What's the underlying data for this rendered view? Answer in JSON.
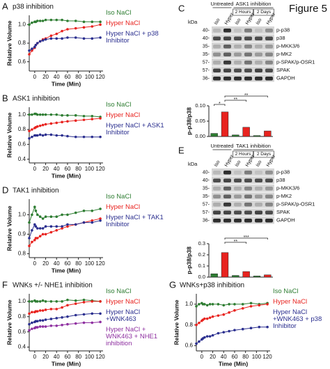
{
  "figure_label": "Figure 5",
  "chart_data": [
    {
      "type": "line",
      "label": "A",
      "title": "p38 inhibition",
      "ylabel": "Relative Volume",
      "xlabel": "Time (Min)",
      "x": [
        -10,
        -5,
        0,
        2,
        5,
        10,
        15,
        20,
        30,
        40,
        50,
        60,
        75,
        90,
        105,
        120
      ],
      "xlim": [
        -10,
        125
      ],
      "xticks": [
        0,
        20,
        40,
        60,
        80,
        100,
        120
      ],
      "ylim": [
        0.5,
        1.1
      ],
      "yticks": [
        0.6,
        0.8,
        {
          "value": 1,
          "label": "1.0"
        }
      ],
      "series": [
        {
          "name": "Iso NaCl",
          "color": "#2e7d32",
          "values": [
            1.0,
            1.02,
            1.03,
            1.03,
            1.04,
            1.04,
            1.04,
            1.05,
            1.05,
            1.05,
            1.05,
            1.04,
            1.04,
            1.03,
            1.03,
            1.03
          ]
        },
        {
          "name": "Hyper NaCl",
          "color": "#e8231f",
          "values": [
            0.68,
            0.72,
            0.75,
            0.78,
            0.8,
            0.82,
            0.84,
            0.85,
            0.88,
            0.9,
            0.93,
            0.95,
            0.96,
            0.97,
            0.98,
            1.0
          ]
        },
        {
          "name": "Hyper NaCl + p38 Inhibitor",
          "color": "#2b2f8f",
          "values": [
            0.72,
            0.74,
            0.76,
            0.78,
            0.8,
            0.82,
            0.83,
            0.84,
            0.85,
            0.85,
            0.85,
            0.86,
            0.86,
            0.85,
            0.85,
            0.86
          ]
        }
      ]
    },
    {
      "type": "line",
      "label": "B",
      "title": "ASK1 inhibition",
      "ylabel": "Relative Volume",
      "xlabel": "Time (Min)",
      "x": [
        -10,
        -5,
        0,
        2,
        5,
        10,
        15,
        20,
        30,
        40,
        50,
        60,
        75,
        90,
        105,
        120
      ],
      "xlim": [
        -10,
        125
      ],
      "xticks": [
        0,
        20,
        40,
        60,
        80,
        100,
        120
      ],
      "ylim": [
        0.35,
        1.1
      ],
      "yticks": [
        0.4,
        0.6,
        0.8,
        {
          "value": 1,
          "label": "1.0"
        }
      ],
      "series": [
        {
          "name": "Iso NaCl",
          "color": "#2e7d32",
          "values": [
            1.0,
            1.0,
            1.01,
            1.01,
            1.0,
            1.0,
            1.0,
            1.0,
            1.0,
            1.0,
            0.99,
            0.99,
            0.99,
            0.98,
            0.98,
            0.97
          ]
        },
        {
          "name": "Hyper NaCl",
          "color": "#e8231f",
          "values": [
            0.78,
            0.8,
            0.82,
            0.83,
            0.84,
            0.85,
            0.86,
            0.87,
            0.88,
            0.89,
            0.9,
            0.91,
            0.92,
            0.93,
            0.94,
            0.95
          ]
        },
        {
          "name": "Hyper NaCl + ASK1 Inhibitor",
          "color": "#2b2f8f",
          "values": [
            0.68,
            0.7,
            0.72,
            0.72,
            0.72,
            0.73,
            0.72,
            0.73,
            0.73,
            0.72,
            0.72,
            0.71,
            0.7,
            0.7,
            0.7,
            0.7
          ]
        }
      ]
    },
    {
      "type": "bar",
      "ylabel": "p-p38/p38",
      "categories": [
        null,
        null,
        null,
        null,
        null,
        null
      ],
      "values": [
        0.01,
        0.08,
        0.005,
        0.03,
        0.003,
        0.018
      ],
      "colors": [
        "#2e7d32",
        "#e8231f",
        "#2e7d32",
        "#e8231f",
        "#2e7d32",
        "#e8231f"
      ],
      "ylim": [
        0,
        0.1
      ],
      "yticks": [
        {
          "value": 0,
          "label": "0.00"
        },
        {
          "value": 0.05,
          "label": "0.05"
        },
        {
          "value": 0.1,
          "label": "0.10"
        }
      ],
      "annotations": [
        "*",
        "**",
        "**"
      ]
    },
    {
      "type": "line",
      "label": "D",
      "title": "TAK1 inhibition",
      "ylabel": "Relative Volume",
      "xlabel": "Time (Min)",
      "x": [
        -10,
        -5,
        0,
        2,
        5,
        10,
        15,
        20,
        30,
        40,
        50,
        60,
        75,
        90,
        105,
        120
      ],
      "xlim": [
        -10,
        125
      ],
      "xticks": [
        0,
        20,
        40,
        60,
        80,
        100,
        120
      ],
      "ylim": [
        0.78,
        1.08
      ],
      "yticks": [
        0.8,
        0.9,
        {
          "value": 1,
          "label": "1.0"
        }
      ],
      "series": [
        {
          "name": "Iso NaCl",
          "color": "#2e7d32",
          "values": [
            0.96,
            1.0,
            1.04,
            1.02,
            1.0,
            0.99,
            0.98,
            0.99,
            0.99,
            0.99,
            1.0,
            1.0,
            1.01,
            1.02,
            1.02,
            1.03
          ]
        },
        {
          "name": "Hyper NaCl",
          "color": "#e8231f",
          "values": [
            0.84,
            0.86,
            0.87,
            0.88,
            0.88,
            0.89,
            0.9,
            0.9,
            0.91,
            0.92,
            0.93,
            0.94,
            0.95,
            0.96,
            0.97,
            0.98
          ]
        },
        {
          "name": "Hyper NaCl + TAK1 Inhibitor",
          "color": "#2b2f8f",
          "values": [
            0.88,
            0.92,
            0.95,
            0.94,
            0.93,
            0.93,
            0.93,
            0.94,
            0.94,
            0.94,
            0.94,
            0.95,
            0.95,
            0.96,
            0.96,
            0.97
          ]
        }
      ]
    },
    {
      "type": "bar",
      "ylabel": "p-p38/p38",
      "categories": [
        null,
        null,
        null,
        null,
        null,
        null
      ],
      "values": [
        0.03,
        0.22,
        0.015,
        0.05,
        0.01,
        0.02
      ],
      "colors": [
        "#2e7d32",
        "#e8231f",
        "#2e7d32",
        "#e8231f",
        "#2e7d32",
        "#e8231f"
      ],
      "ylim": [
        0,
        0.3
      ],
      "yticks": [
        {
          "value": 0,
          "label": "0.0"
        },
        {
          "value": 0.1,
          "label": "0.1"
        },
        {
          "value": 0.2,
          "label": "0.2"
        },
        {
          "value": 0.3,
          "label": "0.3"
        }
      ],
      "annotations": [
        "**",
        "***"
      ]
    },
    {
      "type": "line",
      "label": "F",
      "title": "WNKs +/- NHE1 inhibition",
      "ylabel": "Relative Volume",
      "xlabel": "Time (Min)",
      "x": [
        -10,
        -5,
        0,
        2,
        5,
        10,
        15,
        20,
        30,
        40,
        50,
        60,
        75,
        90,
        105,
        120
      ],
      "xlim": [
        -10,
        125
      ],
      "xticks": [
        0,
        20,
        40,
        60,
        80,
        100,
        120
      ],
      "ylim": [
        0.35,
        1.1
      ],
      "yticks": [
        0.4,
        0.6,
        0.8,
        {
          "value": 1,
          "label": "1.0"
        }
      ],
      "series": [
        {
          "name": "Iso NaCl",
          "color": "#2e7d32",
          "values": [
            1.0,
            1.0,
            1.01,
            1.0,
            1.0,
            1.0,
            1.01,
            1.0,
            1.0,
            1.0,
            1.0,
            1.02,
            1.01,
            1.02,
            1.01,
            1.0
          ]
        },
        {
          "name": "Hyper NaCl",
          "color": "#e8231f",
          "values": [
            0.84,
            0.86,
            0.86,
            0.87,
            0.87,
            0.88,
            0.88,
            0.89,
            0.9,
            0.9,
            0.92,
            0.95,
            0.97,
            0.99,
            1.0,
            1.0
          ]
        },
        {
          "name": "Hyper NaCl +WNK463",
          "color": "#2b2f8f",
          "values": [
            0.7,
            0.72,
            0.73,
            0.74,
            0.74,
            0.75,
            0.75,
            0.76,
            0.77,
            0.78,
            0.79,
            0.8,
            0.82,
            0.83,
            0.84,
            0.84
          ]
        },
        {
          "name": "Hyper NaCl + WNK463 + NHE1 inhibition",
          "color": "#8e2fa0",
          "values": [
            0.62,
            0.64,
            0.65,
            0.66,
            0.66,
            0.67,
            0.67,
            0.67,
            0.68,
            0.68,
            0.69,
            0.7,
            0.71,
            0.72,
            0.72,
            0.73
          ]
        }
      ]
    },
    {
      "type": "line",
      "label": "G",
      "title": "WNKs+p38 inhibition",
      "ylabel": "Relative Volume",
      "xlabel": "Time (Min)",
      "x": [
        -10,
        -5,
        0,
        2,
        5,
        10,
        15,
        20,
        30,
        40,
        50,
        60,
        75,
        90,
        105,
        120
      ],
      "xlim": [
        -10,
        125
      ],
      "xticks": [
        0,
        20,
        40,
        60,
        80,
        100,
        120
      ],
      "ylim": [
        0.55,
        1.1
      ],
      "yticks": [
        0.6,
        0.8,
        {
          "value": 1,
          "label": "1.0"
        }
      ],
      "series": [
        {
          "name": "Iso NaCl",
          "color": "#2e7d32",
          "values": [
            0.98,
            1.0,
            1.01,
            1.0,
            1.0,
            0.99,
            1.0,
            1.0,
            1.0,
            0.99,
            1.0,
            1.0,
            1.0,
            1.01,
            1.0,
            1.01
          ]
        },
        {
          "name": "Hyper NaCl",
          "color": "#e8231f",
          "values": [
            0.8,
            0.82,
            0.84,
            0.85,
            0.86,
            0.86,
            0.87,
            0.88,
            0.89,
            0.9,
            0.92,
            0.94,
            0.96,
            0.98,
            0.99,
            1.0
          ]
        },
        {
          "name": "Hyper NaCl +WNK463 + p38 Inhibitor",
          "color": "#2b2f8f",
          "values": [
            0.62,
            0.64,
            0.66,
            0.67,
            0.68,
            0.69,
            0.69,
            0.7,
            0.72,
            0.73,
            0.74,
            0.75,
            0.76,
            0.77,
            0.78,
            0.78
          ]
        }
      ]
    }
  ],
  "blots": [
    {
      "label": "C",
      "kda": "kDa",
      "groups": [
        "Untreated",
        "ASK1 inhibition"
      ],
      "subgroups": [
        "2 Hours",
        "2 Days"
      ],
      "lanes": [
        "Iso",
        "Hyper",
        "Iso",
        "Hyper",
        "Iso",
        "Hyper"
      ],
      "markers": [
        "40-",
        "40-",
        "35-",
        "35-",
        "57-",
        "57-",
        "36-"
      ],
      "proteins": [
        "p-p38",
        "p38",
        "p-MKK3/6",
        "p-MK2",
        "p-SPAK/p-OSR1",
        "SPAK",
        "GAPDH"
      ]
    },
    {
      "label": "E",
      "kda": "kDa",
      "groups": [
        "Untreated",
        "TAK1 inhibition"
      ],
      "subgroups": [
        "2 Hours",
        "2 Days"
      ],
      "lanes": [
        "Iso",
        "Hyper",
        "Iso",
        "Hyper",
        "Iso",
        "Hyper"
      ],
      "markers": [
        "40-",
        "40-",
        "35-",
        "35-",
        "57-",
        "57-",
        "36-"
      ],
      "proteins": [
        "p-p38",
        "p38",
        "p-MKK3/6",
        "p-MK2",
        "p-SPAK/p-OSR1",
        "SPAK",
        "GAPDH"
      ]
    }
  ]
}
